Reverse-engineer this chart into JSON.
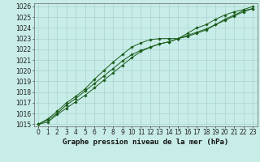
{
  "title": "Graphe pression niveau de la mer (hPa)",
  "bg_color": "#c8ece8",
  "grid_color": "#a8d4d0",
  "line_color": "#1a5c1a",
  "xlim": [
    -0.5,
    23.5
  ],
  "ylim": [
    1014.8,
    1026.3
  ],
  "xticks": [
    0,
    1,
    2,
    3,
    4,
    5,
    6,
    7,
    8,
    9,
    10,
    11,
    12,
    13,
    14,
    15,
    16,
    17,
    18,
    19,
    20,
    21,
    22,
    23
  ],
  "yticks": [
    1015,
    1016,
    1017,
    1018,
    1019,
    1020,
    1021,
    1022,
    1023,
    1024,
    1025,
    1026
  ],
  "line1_x": [
    0,
    1,
    2,
    3,
    4,
    5,
    6,
    7,
    8,
    9,
    10,
    11,
    12,
    13,
    14,
    15,
    16,
    17,
    18,
    19,
    20,
    21,
    22,
    23
  ],
  "line1_y": [
    1015.0,
    1015.5,
    1016.2,
    1017.0,
    1017.6,
    1018.3,
    1019.2,
    1020.0,
    1020.8,
    1021.5,
    1022.2,
    1022.6,
    1022.9,
    1023.0,
    1023.0,
    1023.0,
    1023.2,
    1023.5,
    1023.8,
    1024.3,
    1024.8,
    1025.2,
    1025.6,
    1025.8
  ],
  "line2_x": [
    0,
    1,
    2,
    3,
    4,
    5,
    6,
    7,
    8,
    9,
    10,
    11,
    12,
    13,
    14,
    15,
    16,
    17,
    18,
    19,
    20,
    21,
    22,
    23
  ],
  "line2_y": [
    1015.0,
    1015.4,
    1016.0,
    1016.8,
    1017.4,
    1018.1,
    1018.8,
    1019.5,
    1020.2,
    1020.9,
    1021.5,
    1021.9,
    1022.2,
    1022.5,
    1022.7,
    1023.0,
    1023.3,
    1023.6,
    1023.9,
    1024.3,
    1024.7,
    1025.1,
    1025.5,
    1025.8
  ],
  "line3_x": [
    0,
    1,
    2,
    3,
    4,
    5,
    6,
    7,
    8,
    9,
    10,
    11,
    12,
    13,
    14,
    15,
    16,
    17,
    18,
    19,
    20,
    21,
    22,
    23
  ],
  "line3_y": [
    1015.0,
    1015.2,
    1015.9,
    1016.5,
    1017.1,
    1017.7,
    1018.4,
    1019.1,
    1019.8,
    1020.5,
    1021.2,
    1021.8,
    1022.2,
    1022.5,
    1022.7,
    1023.0,
    1023.5,
    1024.0,
    1024.3,
    1024.8,
    1025.2,
    1025.5,
    1025.7,
    1026.0
  ],
  "tick_fontsize": 5.5,
  "title_fontsize": 6.5,
  "marker": "D",
  "marker_size": 1.8,
  "linewidth": 0.7
}
